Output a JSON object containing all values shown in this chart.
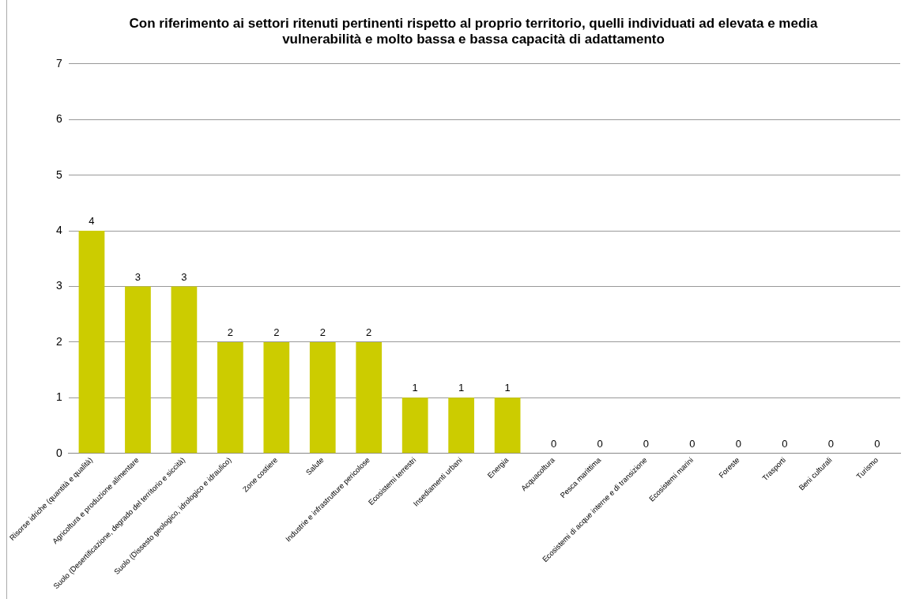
{
  "chart_data": {
    "type": "bar",
    "title": "Con riferimento ai settori ritenuti pertinenti rispetto al proprio territorio, quelli individuati ad elevata e media vulnerabilità e molto bassa e bassa capacità di adattamento",
    "categories": [
      "Risorse idriche (quantità e qualità)",
      "Agricoltura e produzione alimentare",
      "Suolo (Desertificazione, degrado del territorio e siccità)",
      "Suolo (Dissesto geologico, idrologico e idraulico)",
      "Zone costiere",
      "Salute",
      "Industrie e infrastrutture pericolose",
      "Ecosistemi terrestri",
      "Insediamenti urbani",
      "Energia",
      "Acquacoltura",
      "Pesca marittima",
      "Ecosistemi di acque interne e di transizione",
      "Ecosistemi marini",
      "Foreste",
      "Trasporti",
      "Beni culturali",
      "Turismo"
    ],
    "values": [
      4,
      3,
      3,
      2,
      2,
      2,
      2,
      1,
      1,
      1,
      0,
      0,
      0,
      0,
      0,
      0,
      0,
      0
    ],
    "color": "#cccc00",
    "ylim": [
      0,
      7
    ],
    "yticks": [
      0,
      1,
      2,
      3,
      4,
      5,
      6,
      7
    ],
    "grid": "y",
    "data_labels": true
  }
}
